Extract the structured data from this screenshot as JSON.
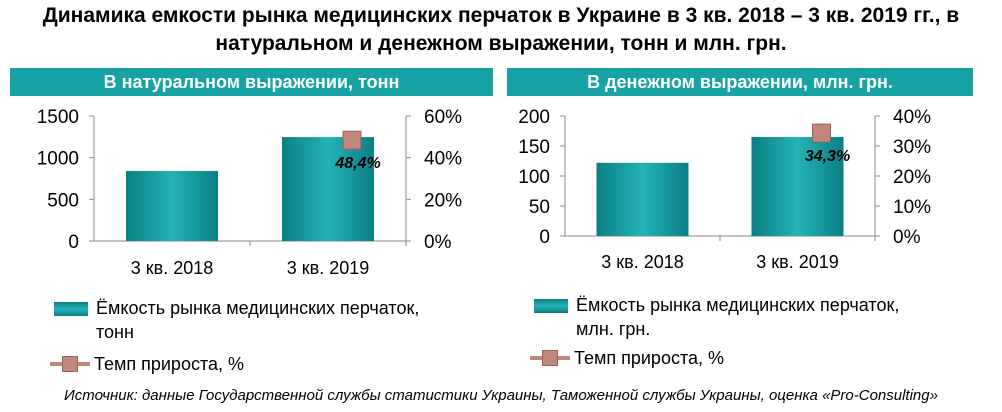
{
  "title": "Динамика емкости рынка медицинских перчаток в Украине в 3 кв. 2018 – 3 кв. 2019 гг., в натуральном и денежном выражении, тонн и млн. грн.",
  "source": "Источник: данные Государственной службы статистики Украины, Таможенной службы Украины, оценка «Pro-Consulting»",
  "colors": {
    "header": "#17a3a6",
    "bar": "#17a3a6",
    "line": "#c0877d"
  },
  "chart_data": [
    {
      "type": "bar",
      "title": "В натуральном выражении, тонн",
      "categories": [
        "3 кв. 2018",
        "3 кв. 2019"
      ],
      "series": [
        {
          "name": "Ёмкость рынка медицинских  перчаток, тонн",
          "legend_lines": [
            "Ёмкость рынка медицинских  перчаток,",
            "тонн"
          ],
          "axis": "left",
          "values": [
            840,
            1247
          ]
        },
        {
          "name": "Темп прироста,  %",
          "type": "line",
          "axis": "right",
          "values": [
            null,
            48.4
          ],
          "data_labels": [
            "",
            "48,4%"
          ]
        }
      ],
      "ylim": [
        0,
        1500
      ],
      "yticks": [
        "0",
        "500",
        "1000",
        "1500"
      ],
      "y2lim": [
        0,
        60
      ],
      "y2ticks": [
        "0%",
        "20%",
        "40%",
        "60%"
      ],
      "grid": false,
      "legend": "bottom"
    },
    {
      "type": "bar",
      "title": "В денежном выражении, млн. грн.",
      "categories": [
        "3 кв. 2018",
        "3 кв. 2019"
      ],
      "series": [
        {
          "name": "Ёмкость рынка медицинских  перчаток, млн.  грн.",
          "legend_lines": [
            "Ёмкость рынка медицинских  перчаток,",
            "млн.  грн."
          ],
          "axis": "left",
          "values": [
            122,
            165
          ]
        },
        {
          "name": "Темп прироста,  %",
          "type": "line",
          "axis": "right",
          "values": [
            null,
            34.3
          ],
          "data_labels": [
            "",
            "34,3%"
          ]
        }
      ],
      "ylim": [
        0,
        200
      ],
      "yticks": [
        "0",
        "50",
        "100",
        "150",
        "200"
      ],
      "y2lim": [
        0,
        40
      ],
      "y2ticks": [
        "0%",
        "10%",
        "20%",
        "30%",
        "40%"
      ],
      "grid": false,
      "legend": "bottom"
    }
  ]
}
